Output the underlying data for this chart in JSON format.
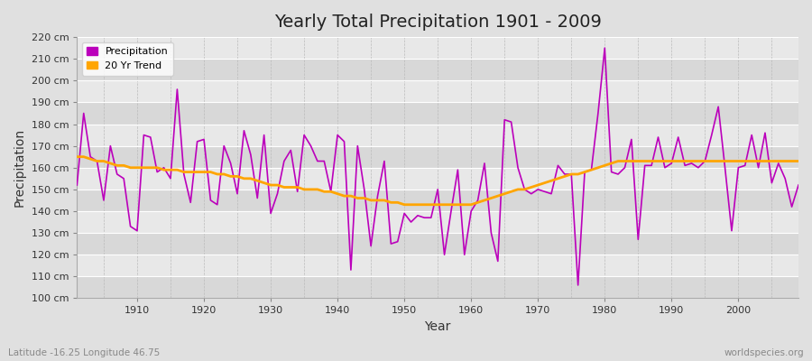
{
  "title": "Yearly Total Precipitation 1901 - 2009",
  "xlabel": "Year",
  "ylabel": "Precipitation",
  "bg_color": "#e0e0e0",
  "plot_bg_color_light": "#e8e8e8",
  "plot_bg_color_dark": "#d8d8d8",
  "grid_color_v": "#cccccc",
  "line_color": "#bb00bb",
  "trend_color": "#ffa500",
  "ylim": [
    100,
    220
  ],
  "ytick_step": 10,
  "footer_left": "Latitude -16.25 Longitude 46.75",
  "footer_right": "worldspecies.org",
  "legend_labels": [
    "Precipitation",
    "20 Yr Trend"
  ],
  "years": [
    1901,
    1902,
    1903,
    1904,
    1905,
    1906,
    1907,
    1908,
    1909,
    1910,
    1911,
    1912,
    1913,
    1914,
    1915,
    1916,
    1917,
    1918,
    1919,
    1920,
    1921,
    1922,
    1923,
    1924,
    1925,
    1926,
    1927,
    1928,
    1929,
    1930,
    1931,
    1932,
    1933,
    1934,
    1935,
    1936,
    1937,
    1938,
    1939,
    1940,
    1941,
    1942,
    1943,
    1944,
    1945,
    1946,
    1947,
    1948,
    1949,
    1950,
    1951,
    1952,
    1953,
    1954,
    1955,
    1956,
    1957,
    1958,
    1959,
    1960,
    1961,
    1962,
    1963,
    1964,
    1965,
    1966,
    1967,
    1968,
    1969,
    1970,
    1971,
    1972,
    1973,
    1974,
    1975,
    1976,
    1977,
    1978,
    1979,
    1980,
    1981,
    1982,
    1983,
    1984,
    1985,
    1986,
    1987,
    1988,
    1989,
    1990,
    1991,
    1992,
    1993,
    1994,
    1995,
    1996,
    1997,
    1998,
    1999,
    2000,
    2001,
    2002,
    2003,
    2004,
    2005,
    2006,
    2007,
    2008,
    2009
  ],
  "precipitation": [
    152,
    185,
    165,
    163,
    145,
    170,
    157,
    155,
    133,
    131,
    175,
    174,
    158,
    160,
    155,
    196,
    157,
    144,
    172,
    173,
    145,
    143,
    170,
    162,
    148,
    177,
    166,
    146,
    175,
    139,
    148,
    163,
    168,
    149,
    175,
    170,
    163,
    163,
    149,
    175,
    172,
    113,
    170,
    150,
    124,
    147,
    163,
    125,
    126,
    139,
    135,
    138,
    137,
    137,
    150,
    120,
    140,
    159,
    120,
    140,
    145,
    162,
    130,
    117,
    182,
    181,
    160,
    150,
    148,
    150,
    149,
    148,
    161,
    157,
    157,
    106,
    158,
    159,
    185,
    215,
    158,
    157,
    160,
    173,
    127,
    161,
    161,
    174,
    160,
    162,
    174,
    161,
    162,
    160,
    163,
    175,
    188,
    160,
    131,
    160,
    161,
    175,
    160,
    176,
    153,
    162,
    155,
    142,
    152
  ],
  "trend_years": [
    1901,
    1902,
    1903,
    1904,
    1905,
    1906,
    1907,
    1908,
    1909,
    1910,
    1911,
    1912,
    1913,
    1914,
    1915,
    1916,
    1917,
    1918,
    1919,
    1920,
    1921,
    1922,
    1923,
    1924,
    1925,
    1926,
    1927,
    1928,
    1929,
    1930,
    1931,
    1932,
    1933,
    1934,
    1935,
    1936,
    1937,
    1938,
    1939,
    1940,
    1941,
    1942,
    1943,
    1944,
    1945,
    1946,
    1947,
    1948,
    1949,
    1950,
    1951,
    1952,
    1953,
    1954,
    1955,
    1956,
    1957,
    1958,
    1959,
    1960,
    1961,
    1962,
    1963,
    1964,
    1965,
    1966,
    1967,
    1968,
    1969,
    1970,
    1971,
    1972,
    1973,
    1974,
    1975,
    1976,
    1977,
    1978,
    1979,
    1980,
    1981,
    1982,
    1983,
    1984,
    1985,
    1986,
    1987,
    1988,
    1989,
    1990,
    1991,
    1992,
    1993,
    1994,
    1995,
    1996,
    1997,
    1998,
    1999,
    2000,
    2001,
    2002,
    2003,
    2004,
    2005,
    2006,
    2007,
    2008,
    2009
  ],
  "trend_values": [
    165,
    165,
    164,
    163,
    163,
    162,
    161,
    161,
    160,
    160,
    160,
    160,
    160,
    159,
    159,
    159,
    158,
    158,
    158,
    158,
    158,
    157,
    157,
    156,
    156,
    155,
    155,
    154,
    153,
    152,
    152,
    151,
    151,
    151,
    150,
    150,
    150,
    149,
    149,
    148,
    147,
    147,
    146,
    146,
    145,
    145,
    145,
    144,
    144,
    143,
    143,
    143,
    143,
    143,
    143,
    143,
    143,
    143,
    143,
    143,
    144,
    145,
    146,
    147,
    148,
    149,
    150,
    150,
    151,
    152,
    153,
    154,
    155,
    156,
    157,
    157,
    158,
    159,
    160,
    161,
    162,
    163,
    163,
    163,
    163,
    163,
    163,
    163,
    163,
    163,
    163,
    163,
    163,
    163,
    163,
    163,
    163,
    163,
    163,
    163,
    163,
    163,
    163,
    163,
    163,
    163,
    163,
    163,
    163
  ]
}
